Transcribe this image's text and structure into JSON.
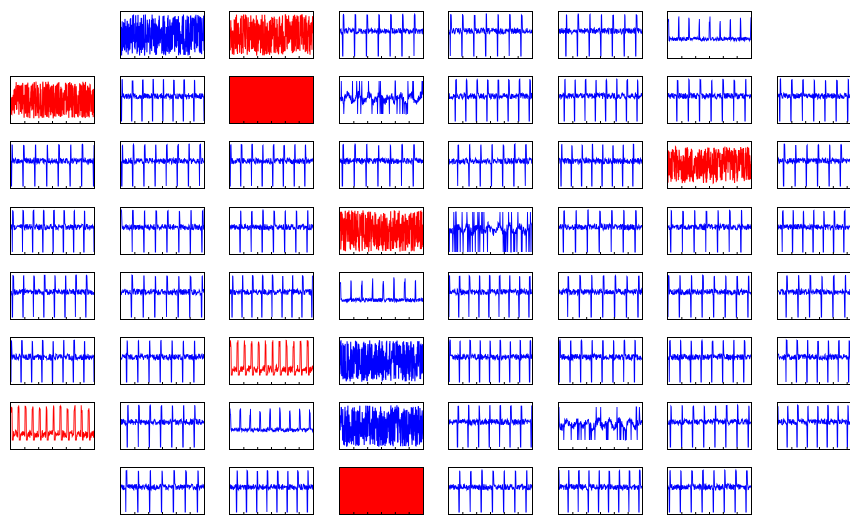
{
  "chart_data": {
    "type": "small-multiples-line",
    "title": "",
    "colors": {
      "normal": "#0000ff",
      "abnormal": "#ff0000"
    },
    "grid_rows": 8,
    "grid_cols": 8,
    "panels": [
      {
        "row": 0,
        "col": 1,
        "style": "dense",
        "color": "blue"
      },
      {
        "row": 0,
        "col": 2,
        "style": "dense-peaks",
        "color": "red"
      },
      {
        "row": 0,
        "col": 3,
        "style": "spikes-down",
        "color": "blue"
      },
      {
        "row": 0,
        "col": 4,
        "style": "spikes-down",
        "color": "blue"
      },
      {
        "row": 0,
        "col": 5,
        "style": "spikes-down",
        "color": "blue"
      },
      {
        "row": 0,
        "col": 6,
        "style": "flat-spikes",
        "color": "blue"
      },
      {
        "row": 1,
        "col": 0,
        "style": "noise",
        "color": "red"
      },
      {
        "row": 1,
        "col": 1,
        "style": "spikes-down",
        "color": "blue"
      },
      {
        "row": 1,
        "col": 2,
        "style": "solid",
        "color": "red"
      },
      {
        "row": 1,
        "col": 3,
        "style": "irregular",
        "color": "blue"
      },
      {
        "row": 1,
        "col": 4,
        "style": "spikes-down",
        "color": "blue"
      },
      {
        "row": 1,
        "col": 5,
        "style": "spikes-down",
        "color": "blue"
      },
      {
        "row": 1,
        "col": 6,
        "style": "spikes-down",
        "color": "blue"
      },
      {
        "row": 1,
        "col": 7,
        "style": "spikes-down",
        "color": "blue"
      },
      {
        "row": 2,
        "col": 0,
        "style": "spikes-down",
        "color": "blue"
      },
      {
        "row": 2,
        "col": 1,
        "style": "spikes-down",
        "color": "blue"
      },
      {
        "row": 2,
        "col": 2,
        "style": "spikes-down",
        "color": "blue"
      },
      {
        "row": 2,
        "col": 3,
        "style": "spikes-down",
        "color": "blue"
      },
      {
        "row": 2,
        "col": 4,
        "style": "spikes-down",
        "color": "blue"
      },
      {
        "row": 2,
        "col": 5,
        "style": "spikes-down",
        "color": "blue"
      },
      {
        "row": 2,
        "col": 6,
        "style": "noise",
        "color": "red"
      },
      {
        "row": 2,
        "col": 7,
        "style": "spikes-down",
        "color": "blue"
      },
      {
        "row": 3,
        "col": 0,
        "style": "spikes-down",
        "color": "blue"
      },
      {
        "row": 3,
        "col": 1,
        "style": "spikes-down",
        "color": "blue"
      },
      {
        "row": 3,
        "col": 2,
        "style": "spikes-down",
        "color": "blue"
      },
      {
        "row": 3,
        "col": 3,
        "style": "dense-peaks",
        "color": "red"
      },
      {
        "row": 3,
        "col": 4,
        "style": "irregular-dense",
        "color": "blue"
      },
      {
        "row": 3,
        "col": 5,
        "style": "spikes-down",
        "color": "blue"
      },
      {
        "row": 3,
        "col": 6,
        "style": "spikes-down",
        "color": "blue"
      },
      {
        "row": 3,
        "col": 7,
        "style": "spikes-down",
        "color": "blue"
      },
      {
        "row": 4,
        "col": 0,
        "style": "spikes-down",
        "color": "blue"
      },
      {
        "row": 4,
        "col": 1,
        "style": "spikes-down",
        "color": "blue"
      },
      {
        "row": 4,
        "col": 2,
        "style": "spikes-down",
        "color": "blue"
      },
      {
        "row": 4,
        "col": 3,
        "style": "flat-spikes",
        "color": "blue"
      },
      {
        "row": 4,
        "col": 4,
        "style": "spikes-down",
        "color": "blue"
      },
      {
        "row": 4,
        "col": 5,
        "style": "spikes-down",
        "color": "blue"
      },
      {
        "row": 4,
        "col": 6,
        "style": "spikes-down",
        "color": "blue"
      },
      {
        "row": 4,
        "col": 7,
        "style": "spikes-down",
        "color": "blue"
      },
      {
        "row": 5,
        "col": 0,
        "style": "spikes-down",
        "color": "blue"
      },
      {
        "row": 5,
        "col": 1,
        "style": "spikes-down",
        "color": "blue"
      },
      {
        "row": 5,
        "col": 2,
        "style": "spikes-up",
        "color": "red"
      },
      {
        "row": 5,
        "col": 3,
        "style": "dense",
        "color": "blue"
      },
      {
        "row": 5,
        "col": 4,
        "style": "spikes-down",
        "color": "blue"
      },
      {
        "row": 5,
        "col": 5,
        "style": "spikes-down",
        "color": "blue"
      },
      {
        "row": 5,
        "col": 6,
        "style": "spikes-down",
        "color": "blue"
      },
      {
        "row": 5,
        "col": 7,
        "style": "spikes-down",
        "color": "blue"
      },
      {
        "row": 6,
        "col": 0,
        "style": "spikes-up",
        "color": "red"
      },
      {
        "row": 6,
        "col": 1,
        "style": "spikes-down",
        "color": "blue"
      },
      {
        "row": 6,
        "col": 2,
        "style": "flat-spikes",
        "color": "blue"
      },
      {
        "row": 6,
        "col": 3,
        "style": "dense",
        "color": "blue"
      },
      {
        "row": 6,
        "col": 4,
        "style": "spikes-down",
        "color": "blue"
      },
      {
        "row": 6,
        "col": 5,
        "style": "irregular",
        "color": "blue"
      },
      {
        "row": 6,
        "col": 6,
        "style": "spikes-down",
        "color": "blue"
      },
      {
        "row": 6,
        "col": 7,
        "style": "spikes-down",
        "color": "blue"
      },
      {
        "row": 7,
        "col": 1,
        "style": "spikes-down",
        "color": "blue"
      },
      {
        "row": 7,
        "col": 2,
        "style": "spikes-down",
        "color": "blue"
      },
      {
        "row": 7,
        "col": 3,
        "style": "solid",
        "color": "red"
      },
      {
        "row": 7,
        "col": 4,
        "style": "spikes-down",
        "color": "blue"
      },
      {
        "row": 7,
        "col": 5,
        "style": "spikes-down",
        "color": "blue"
      },
      {
        "row": 7,
        "col": 6,
        "style": "spikes-down",
        "color": "blue"
      }
    ]
  }
}
